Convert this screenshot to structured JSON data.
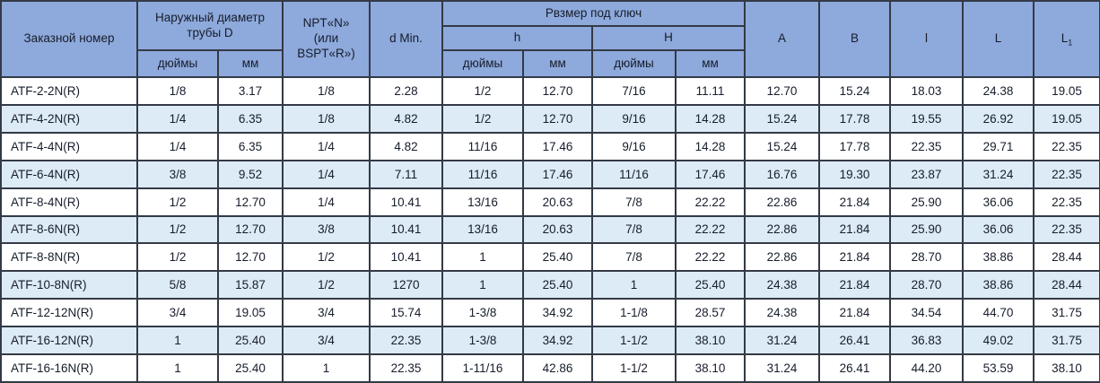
{
  "colors": {
    "header_bg": "#8EA9DB",
    "row_alt_bg": "#DDEBF7",
    "border": "#333A46",
    "text": "#161D2B"
  },
  "table": {
    "header": {
      "order_number": "Заказной номер",
      "outer_diameter": "Наружный диаметр трубы D",
      "npt": "NPT«N»\n(или\nBSPT«R»)",
      "d_min": "d Min.",
      "wrench_size": "Рвзмер под ключ",
      "h_lower": "h",
      "h_upper": "H",
      "inches": "дюймы",
      "mm": "мм",
      "col_a": "A",
      "col_b": "B",
      "col_l_small": "l",
      "col_l_big": "L",
      "col_l1_base": "L",
      "col_l1_sub": "1"
    },
    "rows": [
      [
        "ATF-2-2N(R)",
        "1/8",
        "3.17",
        "1/8",
        "2.28",
        "1/2",
        "12.70",
        "7/16",
        "11.11",
        "12.70",
        "15.24",
        "18.03",
        "24.38",
        "19.05"
      ],
      [
        "ATF-4-2N(R)",
        "1/4",
        "6.35",
        "1/8",
        "4.82",
        "1/2",
        "12.70",
        "9/16",
        "14.28",
        "15.24",
        "17.78",
        "19.55",
        "26.92",
        "19.05"
      ],
      [
        "ATF-4-4N(R)",
        "1/4",
        "6.35",
        "1/4",
        "4.82",
        "11/16",
        "17.46",
        "9/16",
        "14.28",
        "15.24",
        "17.78",
        "22.35",
        "29.71",
        "22.35"
      ],
      [
        "ATF-6-4N(R)",
        "3/8",
        "9.52",
        "1/4",
        "7.11",
        "11/16",
        "17.46",
        "11/16",
        "17.46",
        "16.76",
        "19.30",
        "23.87",
        "31.24",
        "22.35"
      ],
      [
        "ATF-8-4N(R)",
        "1/2",
        "12.70",
        "1/4",
        "10.41",
        "13/16",
        "20.63",
        "7/8",
        "22.22",
        "22.86",
        "21.84",
        "25.90",
        "36.06",
        "22.35"
      ],
      [
        "ATF-8-6N(R)",
        "1/2",
        "12.70",
        "3/8",
        "10.41",
        "13/16",
        "20.63",
        "7/8",
        "22.22",
        "22.86",
        "21.84",
        "25.90",
        "36.06",
        "22.35"
      ],
      [
        "ATF-8-8N(R)",
        "1/2",
        "12.70",
        "1/2",
        "10.41",
        "1",
        "25.40",
        "7/8",
        "22.22",
        "22.86",
        "21.84",
        "28.70",
        "38.86",
        "28.44"
      ],
      [
        "ATF-10-8N(R)",
        "5/8",
        "15.87",
        "1/2",
        "1270",
        "1",
        "25.40",
        "1",
        "25.40",
        "24.38",
        "21.84",
        "28.70",
        "38.86",
        "28.44"
      ],
      [
        "ATF-12-12N(R)",
        "3/4",
        "19.05",
        "3/4",
        "15.74",
        "1-3/8",
        "34.92",
        "1-1/8",
        "28.57",
        "24.38",
        "21.84",
        "34.54",
        "44.70",
        "31.75"
      ],
      [
        "ATF-16-12N(R)",
        "1",
        "25.40",
        "3/4",
        "22.35",
        "1-3/8",
        "34.92",
        "1-1/2",
        "38.10",
        "31.24",
        "26.41",
        "36.83",
        "49.02",
        "31.75"
      ],
      [
        "ATF-16-16N(R)",
        "1",
        "25.40",
        "1",
        "22.35",
        "1-11/16",
        "42.86",
        "1-1/2",
        "38.10",
        "31.24",
        "26.41",
        "44.20",
        "53.59",
        "38.10"
      ]
    ]
  }
}
